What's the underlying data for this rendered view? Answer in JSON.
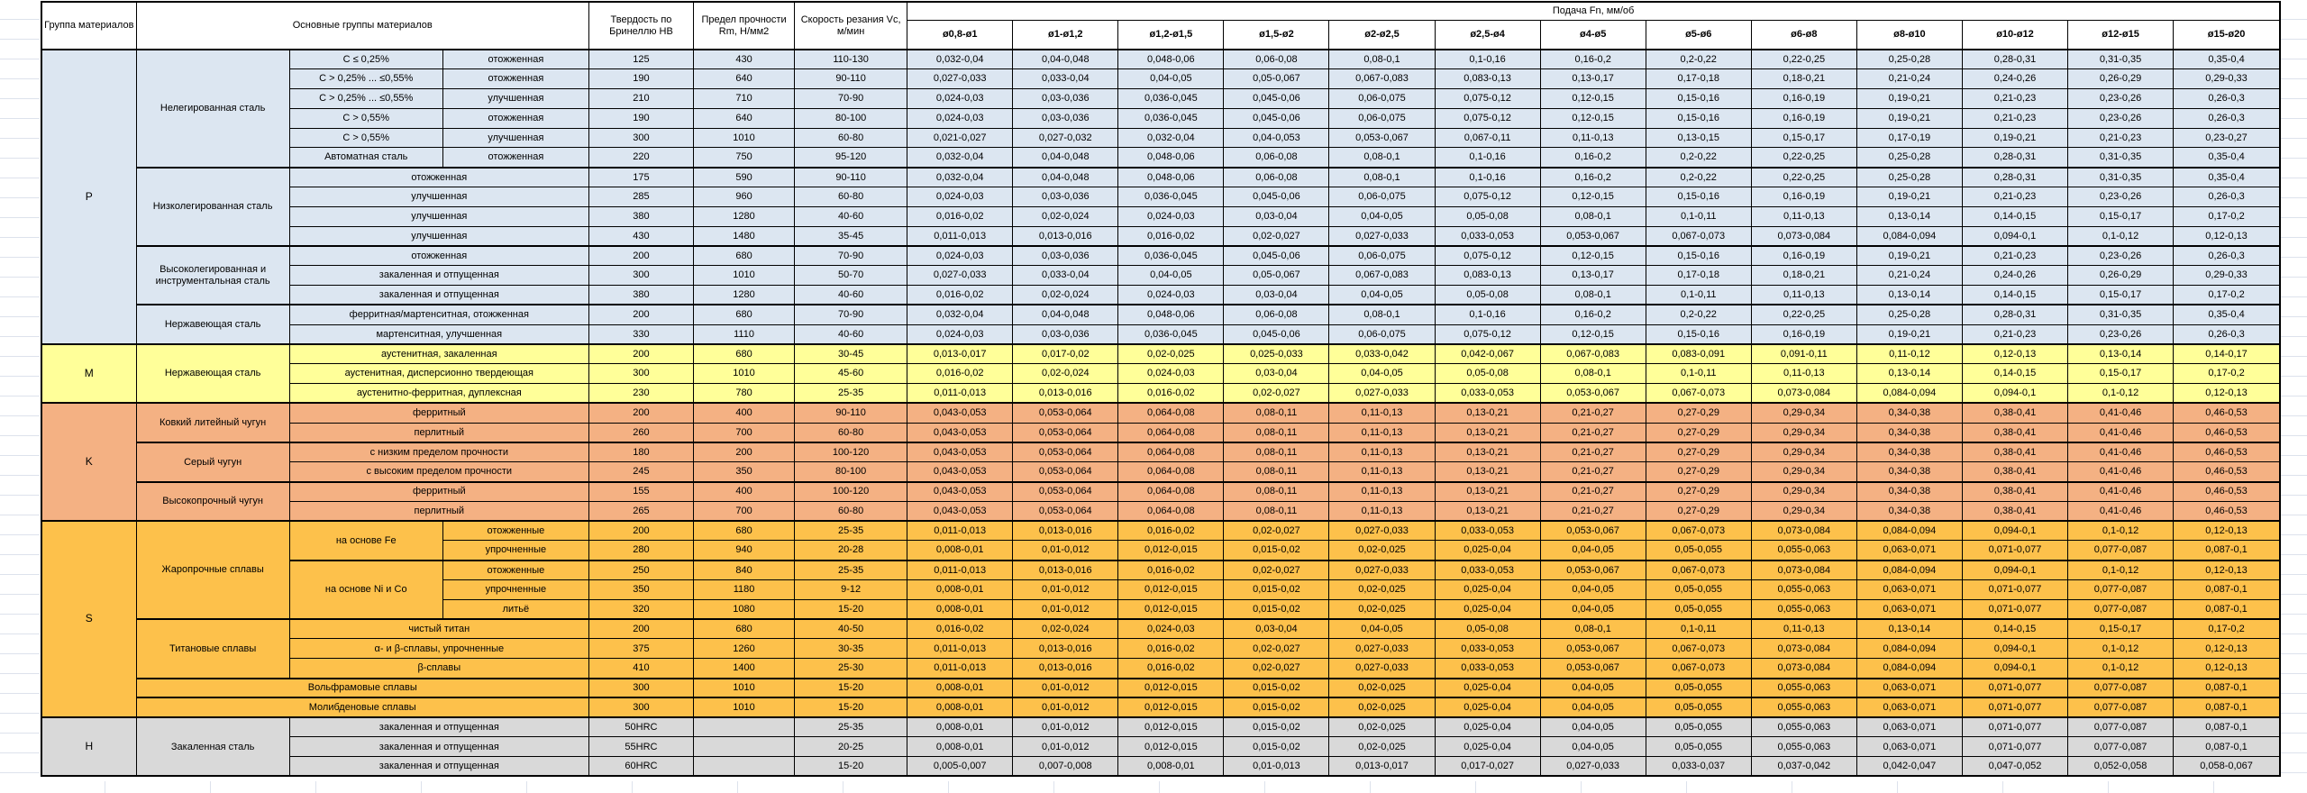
{
  "header": {
    "group": "Группа материалов",
    "main_groups": "Основные группы материалов",
    "hardness": "Твердость по Бринеллю HB",
    "strength": "Предел прочности Rm, Н/мм2",
    "speed": "Скорость резания Vc, м/мин",
    "feed": "Подача Fn, мм/об",
    "diameters": [
      "ø0,8-ø1",
      "ø1-ø1,2",
      "ø1,2-ø1,5",
      "ø1,5-ø2",
      "ø2-ø2,5",
      "ø2,5-ø4",
      "ø4-ø5",
      "ø5-ø6",
      "ø6-ø8",
      "ø8-ø10",
      "ø10-ø12",
      "ø12-ø15",
      "ø15-ø20"
    ]
  },
  "group_colors": {
    "P": "#dce6f1",
    "M": "#ffff99",
    "K": "#f4b183",
    "S": "#fdc14b",
    "H": "#d9d9d9"
  },
  "sheet": {
    "gridline_color": "#dde2ec"
  },
  "feed_chains": {
    "A": [
      "0,032-0,04",
      "0,04-0,048",
      "0,048-0,06",
      "0,06-0,08",
      "0,08-0,1",
      "0,1-0,16",
      "0,16-0,2",
      "0,2-0,22",
      "0,22-0,25",
      "0,25-0,28",
      "0,28-0,31",
      "0,31-0,35",
      "0,35-0,4"
    ],
    "B": [
      "0,027-0,033",
      "0,033-0,04",
      "0,04-0,05",
      "0,05-0,067",
      "0,067-0,083",
      "0,083-0,13",
      "0,13-0,17",
      "0,17-0,18",
      "0,18-0,21",
      "0,21-0,24",
      "0,24-0,26",
      "0,26-0,29",
      "0,29-0,33"
    ],
    "C": [
      "0,024-0,03",
      "0,03-0,036",
      "0,036-0,045",
      "0,045-0,06",
      "0,06-0,075",
      "0,075-0,12",
      "0,12-0,15",
      "0,15-0,16",
      "0,16-0,19",
      "0,19-0,21",
      "0,21-0,23",
      "0,23-0,26",
      "0,26-0,3"
    ],
    "D": [
      "0,021-0,027",
      "0,027-0,032",
      "0,032-0,04",
      "0,04-0,053",
      "0,053-0,067",
      "0,067-0,11",
      "0,11-0,13",
      "0,13-0,15",
      "0,15-0,17",
      "0,17-0,19",
      "0,19-0,21",
      "0,21-0,23",
      "0,23-0,27"
    ],
    "E": [
      "0,016-0,02",
      "0,02-0,024",
      "0,024-0,03",
      "0,03-0,04",
      "0,04-0,05",
      "0,05-0,08",
      "0,08-0,1",
      "0,1-0,11",
      "0,11-0,13",
      "0,13-0,14",
      "0,14-0,15",
      "0,15-0,17",
      "0,17-0,2"
    ],
    "F": [
      "0,011-0,013",
      "0,013-0,016",
      "0,016-0,02",
      "0,02-0,027",
      "0,027-0,033",
      "0,033-0,053",
      "0,053-0,067",
      "0,067-0,073",
      "0,073-0,084",
      "0,084-0,094",
      "0,094-0,1",
      "0,1-0,12",
      "0,12-0,13"
    ],
    "G": [
      "0,013-0,017",
      "0,017-0,02",
      "0,02-0,025",
      "0,025-0,033",
      "0,033-0,042",
      "0,042-0,067",
      "0,067-0,083",
      "0,083-0,091",
      "0,091-0,11",
      "0,11-0,12",
      "0,12-0,13",
      "0,13-0,14",
      "0,14-0,17"
    ],
    "K": [
      "0,043-0,053",
      "0,053-0,064",
      "0,064-0,08",
      "0,08-0,11",
      "0,11-0,13",
      "0,13-0,21",
      "0,21-0,27",
      "0,27-0,29",
      "0,29-0,34",
      "0,34-0,38",
      "0,38-0,41",
      "0,41-0,46",
      "0,46-0,53"
    ],
    "H": [
      "0,008-0,01",
      "0,01-0,012",
      "0,012-0,015",
      "0,015-0,02",
      "0,02-0,025",
      "0,025-0,04",
      "0,04-0,05",
      "0,05-0,055",
      "0,055-0,063",
      "0,063-0,071",
      "0,071-0,077",
      "0,077-0,087",
      "0,087-0,1"
    ],
    "I": [
      "0,005-0,007",
      "0,007-0,008",
      "0,008-0,01",
      "0,01-0,013",
      "0,013-0,017",
      "0,017-0,027",
      "0,027-0,033",
      "0,033-0,037",
      "0,037-0,042",
      "0,042-0,047",
      "0,047-0,052",
      "0,052-0,058",
      "0,058-0,067"
    ]
  },
  "rows": [
    {
      "group": "P",
      "group_rows": 15,
      "family": "Нелегированная сталь",
      "family_rows": 6,
      "sub": "С ≤ 0,25%",
      "cond": "отожженная",
      "hb": "125",
      "rm": "430",
      "vc": "110-130",
      "chain": "A",
      "block": true
    },
    {
      "sub": "С > 0,25% ... ≤0,55%",
      "cond": "отожженная",
      "hb": "190",
      "rm": "640",
      "vc": "90-110",
      "chain": "B"
    },
    {
      "sub": "С > 0,25% ... ≤0,55%",
      "cond": "улучшенная",
      "hb": "210",
      "rm": "710",
      "vc": "70-90",
      "chain": "C"
    },
    {
      "sub": "С > 0,55%",
      "cond": "отожженная",
      "hb": "190",
      "rm": "640",
      "vc": "80-100",
      "chain": "C"
    },
    {
      "sub": "С > 0,55%",
      "cond": "улучшенная",
      "hb": "300",
      "rm": "1010",
      "vc": "60-80",
      "chain": "D"
    },
    {
      "sub": "Автоматная сталь",
      "cond": "отожженная",
      "hb": "220",
      "rm": "750",
      "vc": "95-120",
      "chain": "A"
    },
    {
      "family": "Низколегированная сталь",
      "family_rows": 4,
      "cond": "отожженная",
      "cond_wide": true,
      "hb": "175",
      "rm": "590",
      "vc": "90-110",
      "chain": "A",
      "block": true
    },
    {
      "cond": "улучшенная",
      "cond_wide": true,
      "hb": "285",
      "rm": "960",
      "vc": "60-80",
      "chain": "C"
    },
    {
      "cond": "улучшенная",
      "cond_wide": true,
      "hb": "380",
      "rm": "1280",
      "vc": "40-60",
      "chain": "E"
    },
    {
      "cond": "улучшенная",
      "cond_wide": true,
      "hb": "430",
      "rm": "1480",
      "vc": "35-45",
      "chain": "F"
    },
    {
      "family": "Высоколегированная и инструментальная сталь",
      "family_rows": 3,
      "cond": "отожженная",
      "cond_wide": true,
      "hb": "200",
      "rm": "680",
      "vc": "70-90",
      "chain": "C",
      "block": true
    },
    {
      "cond": "закаленная и отпущенная",
      "cond_wide": true,
      "hb": "300",
      "rm": "1010",
      "vc": "50-70",
      "chain": "B"
    },
    {
      "cond": "закаленная и отпущенная",
      "cond_wide": true,
      "hb": "380",
      "rm": "1280",
      "vc": "40-60",
      "chain": "E"
    },
    {
      "family": "Нержавеющая сталь",
      "family_rows": 2,
      "cond": "ферритная/мартенситная, отожженная",
      "cond_wide": true,
      "hb": "200",
      "rm": "680",
      "vc": "70-90",
      "chain": "A",
      "block": true
    },
    {
      "cond": "мартенситная, улучшенная",
      "cond_wide": true,
      "hb": "330",
      "rm": "1110",
      "vc": "40-60",
      "chain": "C"
    },
    {
      "group": "M",
      "group_rows": 3,
      "family": "Нержавеющая сталь",
      "family_rows": 3,
      "cond": "аустенитная, закаленная",
      "cond_wide": true,
      "hb": "200",
      "rm": "680",
      "vc": "30-45",
      "chain": "G",
      "block": true
    },
    {
      "cond": "аустенитная, дисперсионно твердеющая",
      "cond_wide": true,
      "hb": "300",
      "rm": "1010",
      "vc": "45-60",
      "chain": "E"
    },
    {
      "cond": "аустенитно-ферритная, дуплексная",
      "cond_wide": true,
      "hb": "230",
      "rm": "780",
      "vc": "25-35",
      "chain": "F"
    },
    {
      "group": "K",
      "group_rows": 6,
      "family": "Ковкий литейный чугун",
      "family_rows": 2,
      "cond": "ферритный",
      "cond_wide": true,
      "hb": "200",
      "rm": "400",
      "vc": "90-110",
      "chain": "K",
      "block": true
    },
    {
      "cond": "перлитный",
      "cond_wide": true,
      "hb": "260",
      "rm": "700",
      "vc": "60-80",
      "chain": "K"
    },
    {
      "family": "Серый чугун",
      "family_rows": 2,
      "cond": "с низким пределом прочности",
      "cond_wide": true,
      "hb": "180",
      "rm": "200",
      "vc": "100-120",
      "chain": "K",
      "block": true
    },
    {
      "cond": "с высоким пределом прочности",
      "cond_wide": true,
      "hb": "245",
      "rm": "350",
      "vc": "80-100",
      "chain": "K"
    },
    {
      "family": "Высокопрочный чугун",
      "family_rows": 2,
      "cond": "ферритный",
      "cond_wide": true,
      "hb": "155",
      "rm": "400",
      "vc": "100-120",
      "chain": "K",
      "block": true
    },
    {
      "cond": "перлитный",
      "cond_wide": true,
      "hb": "265",
      "rm": "700",
      "vc": "60-80",
      "chain": "K"
    },
    {
      "group": "S",
      "group_rows": 10,
      "family": "Жаропрочные сплавы",
      "family_rows": 5,
      "sub": "на основе Fe",
      "sub_rows": 2,
      "cond": "отожженные",
      "hb": "200",
      "rm": "680",
      "vc": "25-35",
      "chain": "F",
      "block": true
    },
    {
      "cond": "упрочненные",
      "hb": "280",
      "rm": "940",
      "vc": "20-28",
      "chain": "H"
    },
    {
      "sub": "на основе Ni и Co",
      "sub_rows": 3,
      "cond": "отожженные",
      "hb": "250",
      "rm": "840",
      "vc": "25-35",
      "chain": "F",
      "block": true
    },
    {
      "cond": "упрочненные",
      "hb": "350",
      "rm": "1180",
      "vc": "9-12",
      "chain": "H"
    },
    {
      "cond": "литьё",
      "hb": "320",
      "rm": "1080",
      "vc": "15-20",
      "chain": "H"
    },
    {
      "family": "Титановые сплавы",
      "family_rows": 3,
      "cond": "чистый титан",
      "cond_wide": true,
      "hb": "200",
      "rm": "680",
      "vc": "40-50",
      "chain": "E",
      "block": true
    },
    {
      "cond": "α- и β-сплавы, упрочненные",
      "cond_wide": true,
      "hb": "375",
      "rm": "1260",
      "vc": "30-35",
      "chain": "F"
    },
    {
      "cond": "β-сплавы",
      "cond_wide": true,
      "hb": "410",
      "rm": "1400",
      "vc": "25-30",
      "chain": "F"
    },
    {
      "family": "Вольфрамовые сплавы",
      "family_rows": 1,
      "family_wide": true,
      "hb": "300",
      "rm": "1010",
      "vc": "15-20",
      "chain": "H",
      "block": true
    },
    {
      "family": "Молибденовые сплавы",
      "family_rows": 1,
      "family_wide": true,
      "hb": "300",
      "rm": "1010",
      "vc": "15-20",
      "chain": "H",
      "block": true
    },
    {
      "group": "H",
      "group_rows": 3,
      "family": "Закаленная сталь",
      "family_rows": 3,
      "cond": "закаленная и отпущенная",
      "cond_wide": true,
      "hb": "50HRC",
      "rm": "",
      "vc": "25-35",
      "chain": "H",
      "block": true
    },
    {
      "cond": "закаленная и отпущенная",
      "cond_wide": true,
      "hb": "55HRC",
      "rm": "",
      "vc": "20-25",
      "chain": "H"
    },
    {
      "cond": "закаленная и отпущенная",
      "cond_wide": true,
      "hb": "60HRC",
      "rm": "",
      "vc": "15-20",
      "chain": "I"
    }
  ]
}
